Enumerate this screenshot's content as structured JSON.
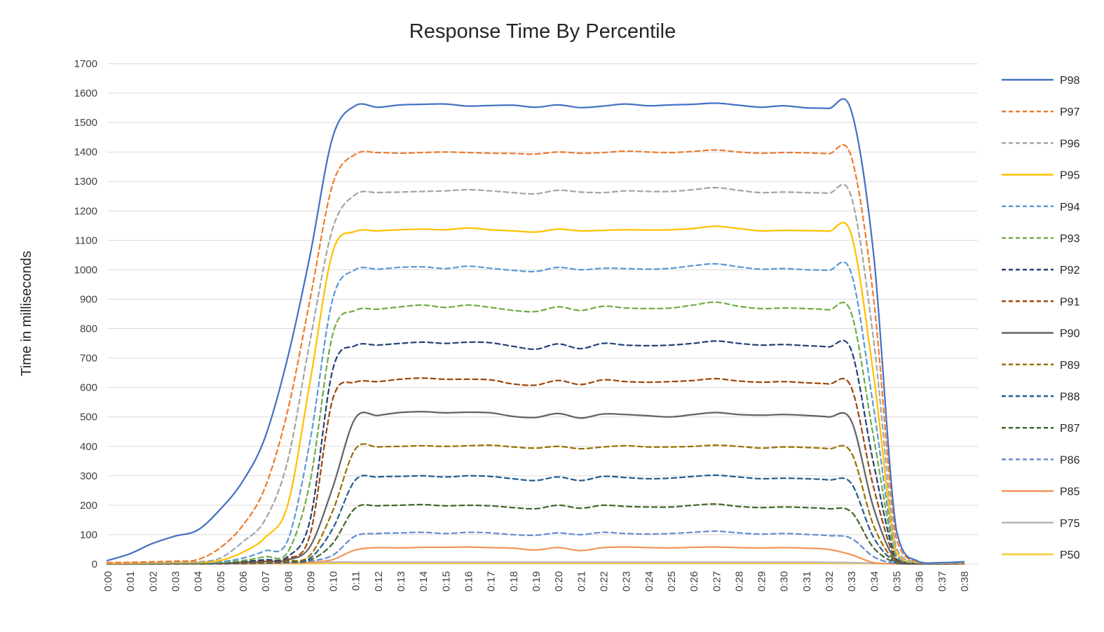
{
  "chart_data": {
    "type": "line",
    "title": "Response Time By Percentile",
    "xlabel": "",
    "ylabel": "Time in milliseconds",
    "ylim": [
      0,
      1700
    ],
    "y_ticks": [
      0,
      100,
      200,
      300,
      400,
      500,
      600,
      700,
      800,
      900,
      1000,
      1100,
      1200,
      1300,
      1400,
      1500,
      1600,
      1700
    ],
    "grid": "horizontal",
    "grid_color": "#D9D9D9",
    "background_color": "#FFFFFF",
    "axis_text_color": "#404040",
    "legend_position": "right",
    "smooth": true,
    "categories": [
      "0:00",
      "0:01",
      "0:02",
      "0:03",
      "0:04",
      "0:05",
      "0:06",
      "0:07",
      "0:08",
      "0:09",
      "0:10",
      "0:11",
      "0:12",
      "0:13",
      "0:14",
      "0:15",
      "0:16",
      "0:17",
      "0:18",
      "0:19",
      "0:20",
      "0:21",
      "0:22",
      "0:23",
      "0:24",
      "0:25",
      "0:26",
      "0:27",
      "0:28",
      "0:29",
      "0:30",
      "0:31",
      "0:32",
      "0:33",
      "0:34",
      "0:35",
      "0:36",
      "0:37",
      "0:38"
    ],
    "series": [
      {
        "name": "P98",
        "color": "#4472C4",
        "dash": "solid",
        "values": [
          12,
          35,
          70,
          95,
          115,
          185,
          280,
          430,
          700,
          1050,
          1450,
          1557,
          1552,
          1560,
          1562,
          1563,
          1556,
          1558,
          1559,
          1552,
          1560,
          1551,
          1556,
          1563,
          1557,
          1560,
          1562,
          1566,
          1559,
          1552,
          1557,
          1550,
          1548,
          1542,
          1050,
          120,
          8,
          5,
          8
        ]
      },
      {
        "name": "P97",
        "color": "#ED7D31",
        "dash": "dashed",
        "values": [
          5,
          6,
          8,
          10,
          15,
          55,
          130,
          260,
          520,
          900,
          1290,
          1392,
          1398,
          1396,
          1398,
          1400,
          1398,
          1396,
          1395,
          1393,
          1400,
          1396,
          1398,
          1403,
          1400,
          1398,
          1402,
          1407,
          1400,
          1396,
          1398,
          1397,
          1394,
          1386,
          900,
          90,
          7,
          4,
          6
        ]
      },
      {
        "name": "P96",
        "color": "#A5A5A5",
        "dash": "dashed",
        "values": [
          3,
          4,
          5,
          6,
          8,
          20,
          75,
          150,
          350,
          760,
          1140,
          1255,
          1262,
          1264,
          1266,
          1268,
          1272,
          1268,
          1262,
          1258,
          1270,
          1264,
          1262,
          1268,
          1266,
          1266,
          1272,
          1279,
          1270,
          1262,
          1264,
          1262,
          1260,
          1250,
          760,
          55,
          6,
          3,
          5
        ]
      },
      {
        "name": "P95",
        "color": "#FFC000",
        "dash": "solid",
        "values": [
          2,
          3,
          4,
          5,
          6,
          12,
          40,
          90,
          200,
          620,
          1060,
          1130,
          1132,
          1136,
          1138,
          1136,
          1142,
          1136,
          1132,
          1128,
          1138,
          1132,
          1134,
          1136,
          1135,
          1136,
          1140,
          1148,
          1140,
          1132,
          1134,
          1133,
          1131,
          1122,
          640,
          40,
          5,
          3,
          4
        ]
      },
      {
        "name": "P94",
        "color": "#5B9BD5",
        "dash": "dashed",
        "values": [
          2,
          2,
          3,
          4,
          5,
          8,
          20,
          45,
          80,
          420,
          900,
          1000,
          1002,
          1008,
          1010,
          1004,
          1012,
          1005,
          998,
          994,
          1008,
          1000,
          1005,
          1004,
          1002,
          1005,
          1014,
          1020,
          1010,
          1002,
          1004,
          1000,
          998,
          990,
          530,
          30,
          4,
          2,
          4
        ]
      },
      {
        "name": "P93",
        "color": "#70AD47",
        "dash": "dashed",
        "values": [
          2,
          2,
          3,
          3,
          4,
          6,
          12,
          25,
          40,
          280,
          780,
          862,
          866,
          874,
          880,
          872,
          880,
          872,
          862,
          858,
          874,
          862,
          876,
          870,
          868,
          870,
          880,
          890,
          876,
          868,
          870,
          868,
          864,
          855,
          430,
          24,
          4,
          2,
          3
        ]
      },
      {
        "name": "P92",
        "color": "#264478",
        "dash": "dashed",
        "values": [
          1,
          2,
          2,
          3,
          3,
          5,
          9,
          15,
          25,
          150,
          660,
          742,
          744,
          750,
          754,
          750,
          754,
          752,
          740,
          730,
          748,
          732,
          750,
          744,
          742,
          744,
          750,
          758,
          750,
          744,
          746,
          742,
          738,
          728,
          340,
          18,
          3,
          2,
          3
        ]
      },
      {
        "name": "P91",
        "color": "#9E480E",
        "dash": "dashed",
        "values": [
          1,
          1,
          2,
          2,
          3,
          4,
          7,
          11,
          18,
          100,
          560,
          618,
          620,
          628,
          632,
          628,
          628,
          626,
          612,
          608,
          624,
          610,
          626,
          620,
          618,
          620,
          624,
          630,
          622,
          618,
          620,
          616,
          612,
          602,
          260,
          13,
          3,
          1,
          2
        ]
      },
      {
        "name": "P90",
        "color": "#636363",
        "dash": "solid",
        "values": [
          1,
          1,
          2,
          2,
          2,
          3,
          6,
          9,
          14,
          60,
          260,
          495,
          505,
          515,
          518,
          514,
          516,
          514,
          502,
          498,
          512,
          496,
          510,
          508,
          504,
          500,
          508,
          515,
          508,
          506,
          508,
          505,
          500,
          488,
          190,
          10,
          2,
          1,
          2
        ]
      },
      {
        "name": "P89",
        "color": "#997300",
        "dash": "dashed",
        "values": [
          1,
          1,
          1,
          2,
          2,
          3,
          5,
          7,
          11,
          30,
          180,
          390,
          398,
          400,
          402,
          400,
          402,
          404,
          398,
          394,
          400,
          392,
          398,
          402,
          398,
          398,
          400,
          404,
          400,
          394,
          398,
          396,
          392,
          380,
          130,
          8,
          2,
          1,
          2
        ]
      },
      {
        "name": "P88",
        "color": "#255E91",
        "dash": "dashed",
        "values": [
          1,
          1,
          1,
          1,
          2,
          2,
          4,
          6,
          9,
          20,
          120,
          285,
          296,
          298,
          300,
          296,
          300,
          298,
          290,
          284,
          296,
          284,
          298,
          294,
          290,
          292,
          298,
          302,
          296,
          290,
          292,
          290,
          286,
          275,
          90,
          6,
          1,
          1,
          2
        ]
      },
      {
        "name": "P87",
        "color": "#43682B",
        "dash": "dashed",
        "values": [
          0,
          1,
          1,
          1,
          1,
          2,
          3,
          4,
          7,
          14,
          70,
          190,
          198,
          200,
          202,
          198,
          200,
          198,
          192,
          188,
          200,
          190,
          200,
          196,
          194,
          194,
          200,
          204,
          196,
          192,
          194,
          192,
          188,
          178,
          55,
          4,
          1,
          1,
          1
        ]
      },
      {
        "name": "P86",
        "color": "#698ED0",
        "dash": "dashed",
        "values": [
          0,
          0,
          1,
          1,
          1,
          1,
          2,
          3,
          5,
          10,
          30,
          95,
          104,
          106,
          108,
          104,
          108,
          106,
          100,
          98,
          106,
          100,
          108,
          104,
          102,
          104,
          108,
          112,
          106,
          102,
          104,
          101,
          97,
          88,
          25,
          2,
          1,
          0,
          1
        ]
      },
      {
        "name": "P85",
        "color": "#F1975A",
        "dash": "solid",
        "values": [
          0,
          0,
          0,
          1,
          1,
          1,
          1,
          2,
          3,
          6,
          15,
          48,
          56,
          55,
          57,
          57,
          58,
          56,
          54,
          48,
          56,
          46,
          56,
          58,
          56,
          55,
          57,
          58,
          56,
          55,
          56,
          54,
          50,
          32,
          5,
          1,
          0,
          0,
          1
        ]
      },
      {
        "name": "P75",
        "color": "#B7B7B7",
        "dash": "solid",
        "values": [
          2,
          2,
          2,
          2,
          2,
          2,
          2,
          2,
          3,
          5,
          7,
          7,
          7,
          7,
          7,
          7,
          7,
          7,
          7,
          7,
          7,
          7,
          7,
          7,
          7,
          7,
          7,
          7,
          7,
          7,
          7,
          7,
          6,
          5,
          3,
          2,
          2,
          2,
          2
        ]
      },
      {
        "name": "P50",
        "color": "#FFCD33",
        "dash": "solid",
        "values": [
          2,
          2,
          2,
          2,
          2,
          2,
          2,
          2,
          2,
          2,
          3,
          3,
          3,
          3,
          3,
          3,
          3,
          3,
          3,
          3,
          3,
          3,
          3,
          3,
          3,
          3,
          3,
          3,
          3,
          3,
          3,
          3,
          3,
          3,
          2,
          2,
          2,
          2,
          2
        ]
      }
    ]
  }
}
